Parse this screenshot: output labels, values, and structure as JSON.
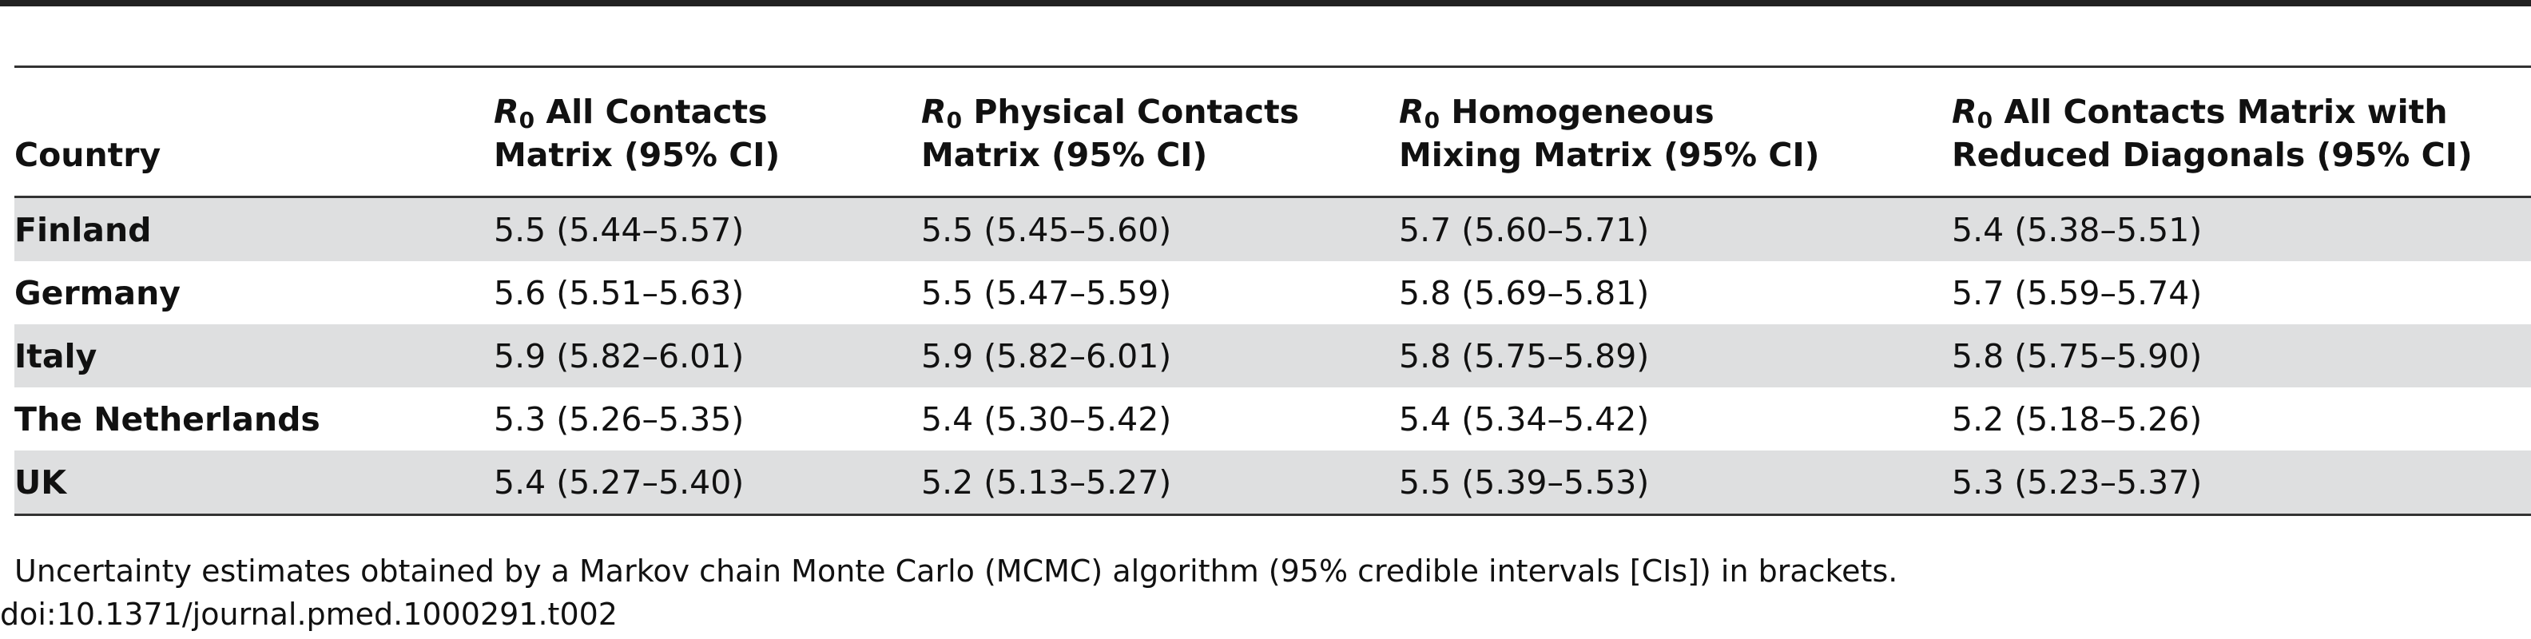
{
  "table": {
    "headers": [
      {
        "prefix": "",
        "subscript": "",
        "text": "Country"
      },
      {
        "prefix": "R",
        "subscript": "0",
        "line1": " All Contacts",
        "line2": "Matrix (95% CI)"
      },
      {
        "prefix": "R",
        "subscript": "0",
        "line1": " Physical Contacts",
        "line2": "Matrix (95% CI)"
      },
      {
        "prefix": "R",
        "subscript": "0",
        "line1": " Homogeneous",
        "line2": "Mixing Matrix (95% CI)"
      },
      {
        "prefix": "R",
        "subscript": "0",
        "line1": " All Contacts Matrix with",
        "line2": "Reduced Diagonals (95% CI)"
      }
    ],
    "rows": [
      {
        "country": "Finland",
        "all": "5.5 (5.44–5.57)",
        "physical": "5.5 (5.45–5.60)",
        "homogeneous": "5.7 (5.60–5.71)",
        "reduced": "5.4 (5.38–5.51)"
      },
      {
        "country": "Germany",
        "all": "5.6 (5.51–5.63)",
        "physical": "5.5 (5.47–5.59)",
        "homogeneous": "5.8 (5.69–5.81)",
        "reduced": "5.7 (5.59–5.74)"
      },
      {
        "country": "Italy",
        "all": "5.9 (5.82–6.01)",
        "physical": "5.9 (5.82–6.01)",
        "homogeneous": "5.8 (5.75–5.89)",
        "reduced": "5.8 (5.75–5.90)"
      },
      {
        "country": "The Netherlands",
        "all": "5.3 (5.26–5.35)",
        "physical": "5.4 (5.30–5.42)",
        "homogeneous": "5.4 (5.34–5.42)",
        "reduced": "5.2 (5.18–5.26)"
      },
      {
        "country": "UK",
        "all": "5.4 (5.27–5.40)",
        "physical": "5.2 (5.13–5.27)",
        "homogeneous": "5.5 (5.39–5.53)",
        "reduced": "5.3 (5.23–5.37)"
      }
    ]
  },
  "footnote": "Uncertainty estimates obtained by a Markov chain Monte Carlo (MCMC) algorithm (95% credible intervals [CIs]) in brackets.",
  "doi": "doi:10.1371/journal.pmed.1000291.t002",
  "colors": {
    "shaded_row": "#dedfe0",
    "rule": "#333333"
  }
}
